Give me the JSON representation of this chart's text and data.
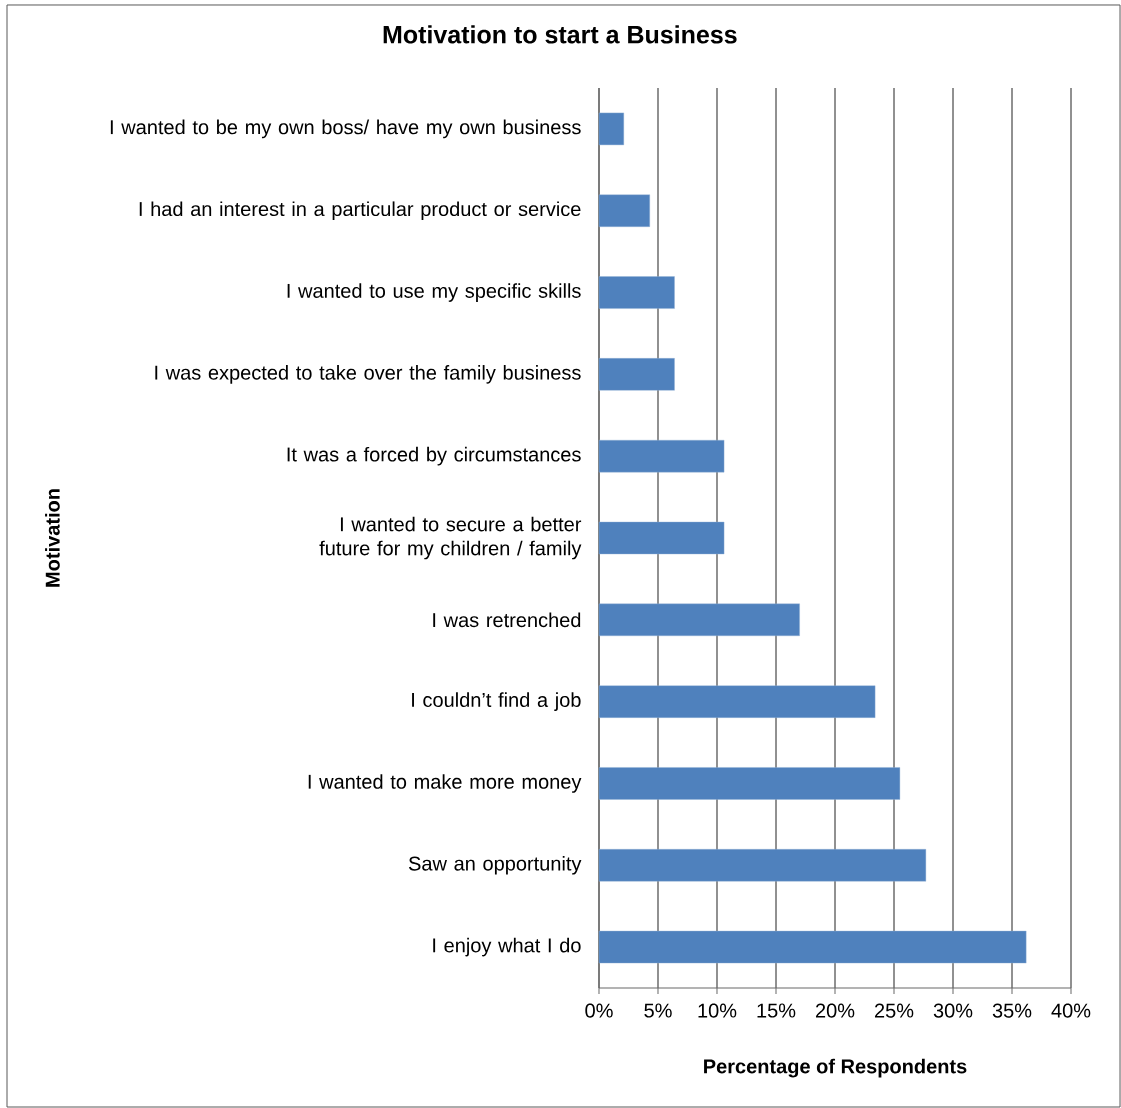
{
  "chart_data": {
    "type": "bar",
    "orientation": "horizontal",
    "title": "Motivation to start a Business",
    "xlabel": "Percentage of Respondents",
    "ylabel": "Motivation",
    "categories": [
      "I wanted to be my own boss/ have my own business",
      "I had an interest in a particular product or service",
      "I wanted to use my specific skills",
      "I was expected to take over the family business",
      "It was a forced by circumstances",
      "I wanted to secure a better future for my children / family",
      "I was retrenched",
      "I couldn’t find a job",
      "I wanted to make more money",
      "Saw an opportunity",
      "I enjoy what I do"
    ],
    "values": [
      2.1,
      4.3,
      6.4,
      6.4,
      10.6,
      10.6,
      17.0,
      23.4,
      25.5,
      27.7,
      36.2
    ],
    "color": "#4f81bd",
    "xlim": [
      0,
      40
    ],
    "xticks": [
      {
        "value": 0,
        "label": "0%"
      },
      {
        "value": 5,
        "label": "5%"
      },
      {
        "value": 10,
        "label": "10%"
      },
      {
        "value": 15,
        "label": "15%"
      },
      {
        "value": 20,
        "label": "20%"
      },
      {
        "value": 25,
        "label": "25%"
      },
      {
        "value": 30,
        "label": "30%"
      },
      {
        "value": 35,
        "label": "35%"
      },
      {
        "value": 40,
        "label": "40%"
      }
    ],
    "grid": "x"
  }
}
